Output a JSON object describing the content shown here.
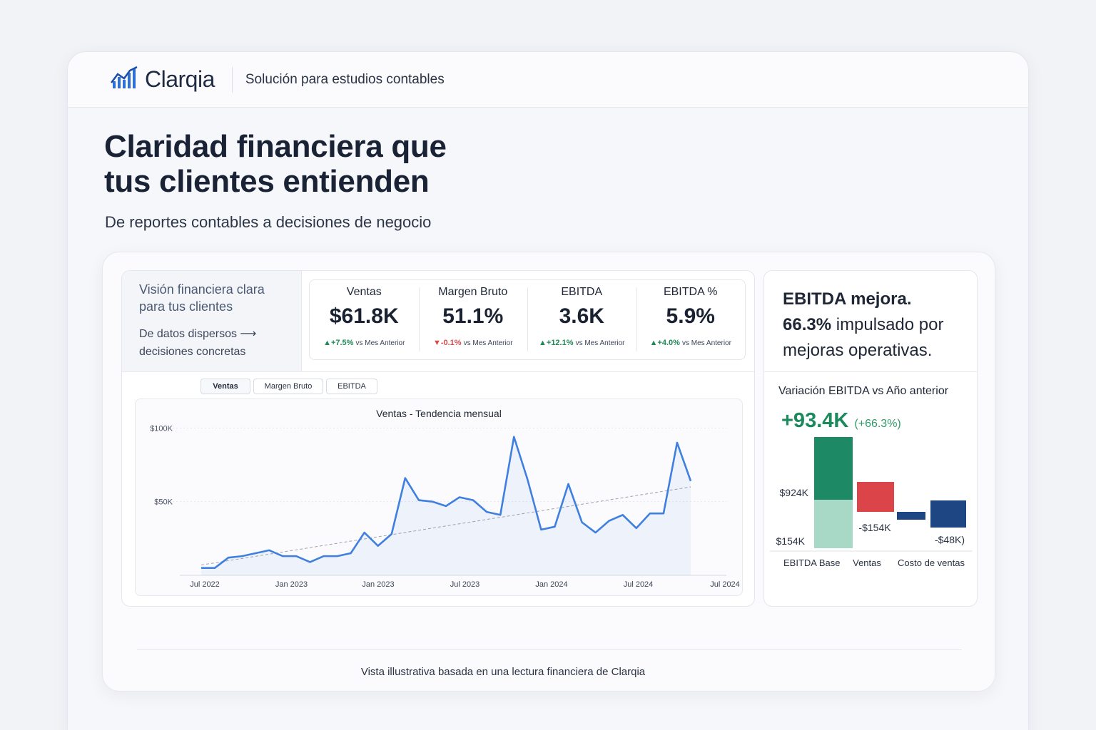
{
  "brand": {
    "name": "Clarqia",
    "tagline": "Solución para estudios contables"
  },
  "hero": {
    "title_line1": "Claridad financiera que",
    "title_line2": "tus clientes entienden",
    "subtitle": "De reportes contables a decisiones de negocio"
  },
  "intro": {
    "title_line1": "Visión financiera clara",
    "title_line2": "para tus clientes",
    "sub_line1": "De datos dispersos ⟶",
    "sub_line2": "decisiones concretas"
  },
  "kpis": [
    {
      "label": "Ventas",
      "value": "$61.8K",
      "delta": "+7.5%",
      "direction": "up",
      "ref": "vs Mes Anterior"
    },
    {
      "label": "Margen Bruto",
      "value": "51.1%",
      "delta": "-0.1%",
      "direction": "down",
      "ref": "vs Mes Anterior"
    },
    {
      "label": "EBITDA",
      "value": "3.6K",
      "delta": "+12.1%",
      "direction": "up",
      "ref": "vs Mes Anterior"
    },
    {
      "label": "EBITDA %",
      "value": "5.9%",
      "delta": "+4.0%",
      "direction": "up",
      "ref": "vs Mes Anterior"
    }
  ],
  "tabs": [
    {
      "label": "Ventas",
      "active": true
    },
    {
      "label": "Margen Bruto",
      "active": false
    },
    {
      "label": "EBITDA",
      "active": false
    }
  ],
  "chart_data": {
    "type": "line",
    "title": "Ventas - Tendencia mensual",
    "xlabel": "",
    "ylabel": "",
    "y_ticks": [
      "$100K",
      "$50K"
    ],
    "y_tick_values": [
      100000,
      50000
    ],
    "ylim": [
      0,
      105000
    ],
    "x_tick_labels": [
      "Jul 2022",
      "Jan 2023",
      "Jan 2023",
      "Jul 2023",
      "Jan 2024",
      "Jul 2024",
      "Jul 2024"
    ],
    "grid": true,
    "series": [
      {
        "values": [
          5000,
          5000,
          12000,
          13000,
          15000,
          17000,
          13000,
          13000,
          9000,
          13000,
          13000,
          15000,
          29000,
          20000,
          28000,
          66000,
          51000,
          50000,
          47000,
          53000,
          51000,
          43000,
          41000,
          94000,
          65000,
          31000,
          33000,
          62000,
          36000,
          29000,
          37000,
          41000,
          32000,
          42000,
          42000,
          90000,
          64000
        ]
      }
    ],
    "trendline": {
      "start": 7000,
      "end": 60000,
      "style": "dashed"
    },
    "area_fill": true,
    "color": "#3f7fe0"
  },
  "insight": {
    "line1": "EBITDA mejora.",
    "line2_strong": "66.3%",
    "line2_rest": " impulsado por",
    "line3": "mejoras operativas."
  },
  "variation": {
    "title": "Variación EBITDA vs Año anterior",
    "value": "+93.4K",
    "pct": "(+66.3%)"
  },
  "waterfall": {
    "type": "bar",
    "categories": [
      "EBITDA Base",
      "Ventas",
      "Costo de ventas"
    ],
    "labels": {
      "base_top": "$924K",
      "base_bottom": "$154K",
      "ventas": "-$154K",
      "last": "-$48K)"
    },
    "colors": {
      "base_top": "#1e8a65",
      "base_bottom": "#a8d8c6",
      "negative": "#db4448",
      "navy": "#1e4683"
    }
  },
  "footer": {
    "note": "Vista illustrativa basada en una lectura financiera de Clarqia"
  },
  "colors": {
    "accent": "#3f7fe0",
    "positive": "#1d8a58",
    "negative": "#d94a4a"
  }
}
